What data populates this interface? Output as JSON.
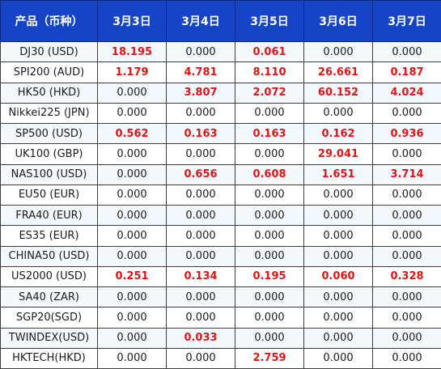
{
  "header": {
    "product_label": "产品（币种）",
    "dates": [
      "3月3日",
      "3月4日",
      "3月5日",
      "3月6日",
      "3月7日"
    ]
  },
  "rows": [
    {
      "product": "DJ30 (USD)",
      "values": [
        "18.195",
        "0.000",
        "0.061",
        "0.000",
        "0.000"
      ],
      "highlight": [
        true,
        false,
        true,
        false,
        false
      ]
    },
    {
      "product": "SPI200 (AUD)",
      "values": [
        "1.179",
        "4.781",
        "8.110",
        "26.661",
        "0.187"
      ],
      "highlight": [
        true,
        true,
        true,
        true,
        true
      ]
    },
    {
      "product": "HK50 (HKD)",
      "values": [
        "0.000",
        "3.807",
        "2.072",
        "60.152",
        "4.024"
      ],
      "highlight": [
        false,
        true,
        true,
        true,
        true
      ]
    },
    {
      "product": "Nikkei225 (JPN)",
      "values": [
        "0.000",
        "0.000",
        "0.000",
        "0.000",
        "0.000"
      ],
      "highlight": [
        false,
        false,
        false,
        false,
        false
      ]
    },
    {
      "product": "SP500 (USD)",
      "values": [
        "0.562",
        "0.163",
        "0.163",
        "0.162",
        "0.936"
      ],
      "highlight": [
        true,
        true,
        true,
        true,
        true
      ]
    },
    {
      "product": "UK100 (GBP)",
      "values": [
        "0.000",
        "0.000",
        "0.000",
        "29.041",
        "0.000"
      ],
      "highlight": [
        false,
        false,
        false,
        true,
        false
      ]
    },
    {
      "product": "NAS100 (USD)",
      "values": [
        "0.000",
        "0.656",
        "0.608",
        "1.651",
        "3.714"
      ],
      "highlight": [
        false,
        true,
        true,
        true,
        true
      ]
    },
    {
      "product": "EU50 (EUR)",
      "values": [
        "0.000",
        "0.000",
        "0.000",
        "0.000",
        "0.000"
      ],
      "highlight": [
        false,
        false,
        false,
        false,
        false
      ]
    },
    {
      "product": "FRA40 (EUR)",
      "values": [
        "0.000",
        "0.000",
        "0.000",
        "0.000",
        "0.000"
      ],
      "highlight": [
        false,
        false,
        false,
        false,
        false
      ]
    },
    {
      "product": "ES35 (EUR)",
      "values": [
        "0.000",
        "0.000",
        "0.000",
        "0.000",
        "0.000"
      ],
      "highlight": [
        false,
        false,
        false,
        false,
        false
      ]
    },
    {
      "product": "CHINA50 (USD)",
      "values": [
        "0.000",
        "0.000",
        "0.000",
        "0.000",
        "0.000"
      ],
      "highlight": [
        false,
        false,
        false,
        false,
        false
      ]
    },
    {
      "product": "US2000 (USD)",
      "values": [
        "0.251",
        "0.134",
        "0.195",
        "0.060",
        "0.328"
      ],
      "highlight": [
        true,
        true,
        true,
        true,
        true
      ]
    },
    {
      "product": "SA40 (ZAR)",
      "values": [
        "0.000",
        "0.000",
        "0.000",
        "0.000",
        "0.000"
      ],
      "highlight": [
        false,
        false,
        false,
        false,
        false
      ]
    },
    {
      "product": "SGP20(SGD)",
      "values": [
        "0.000",
        "0.000",
        "0.000",
        "0.000",
        "0.000"
      ],
      "highlight": [
        false,
        false,
        false,
        false,
        false
      ]
    },
    {
      "product": "TWINDEX(USD)",
      "values": [
        "0.000",
        "0.033",
        "0.000",
        "0.000",
        "0.000"
      ],
      "highlight": [
        false,
        true,
        false,
        false,
        false
      ]
    },
    {
      "product": "HKTECH(HKD)",
      "values": [
        "0.000",
        "0.000",
        "2.759",
        "0.000",
        "0.000"
      ],
      "highlight": [
        false,
        false,
        true,
        false,
        false
      ]
    }
  ],
  "colors": {
    "header_bg": "#1545c6",
    "header_text": "#ffffff",
    "highlight_value": "#e41313",
    "row_stripe": "#f3f8fd",
    "border": "#3d3d3d"
  }
}
